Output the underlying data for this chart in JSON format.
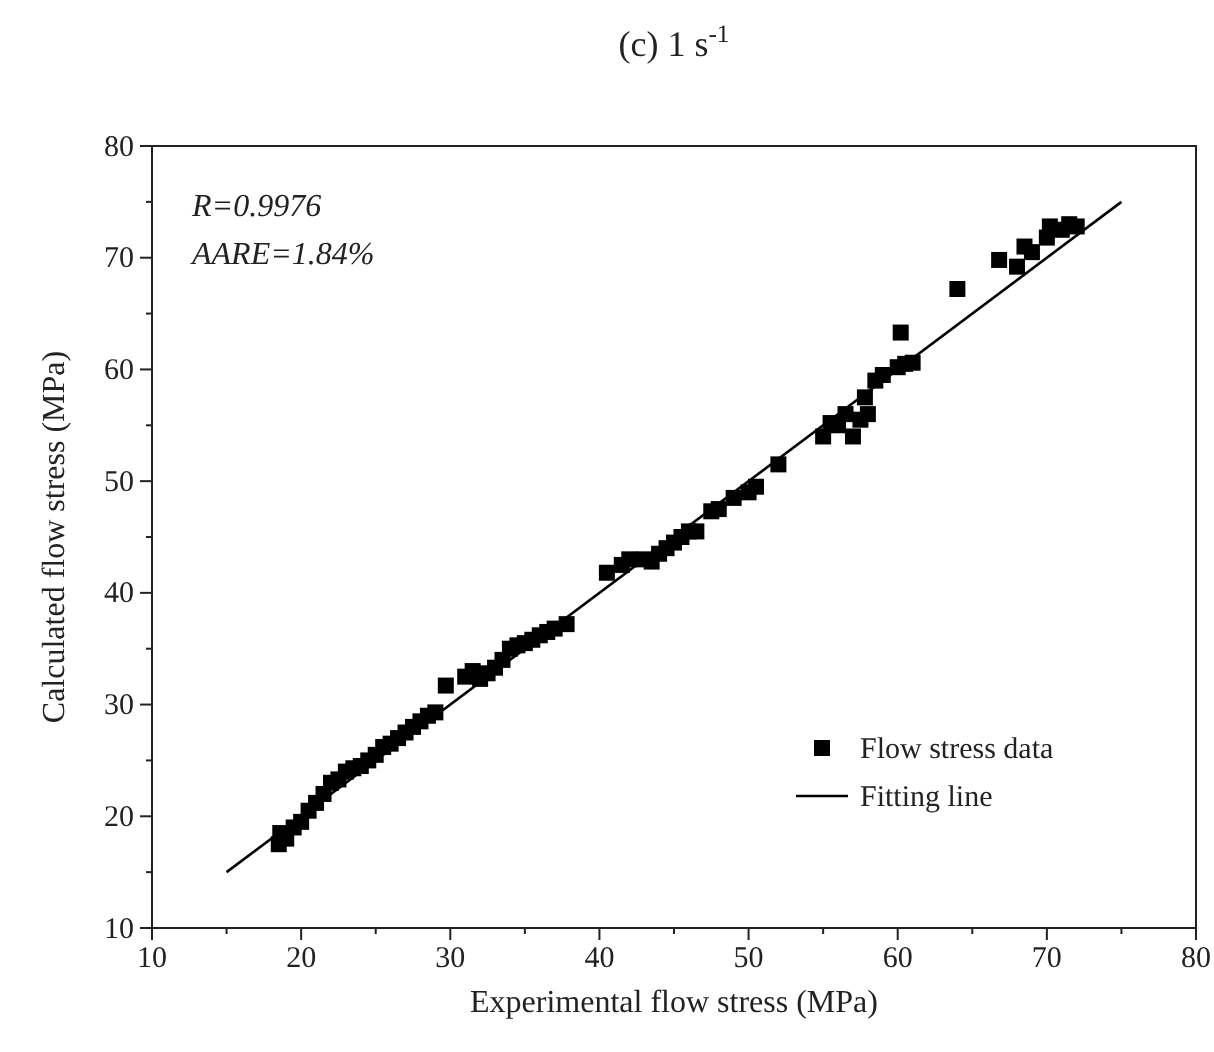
{
  "chart_data": {
    "type": "scatter",
    "title": "(c) 1 s$^{-1}$",
    "xlabel": "Experimental flow stress (MPa)",
    "ylabel": "Calculated flow stress (MPa)",
    "xlim": [
      10,
      80
    ],
    "ylim": [
      10,
      80
    ],
    "xticks": [
      10,
      20,
      30,
      40,
      50,
      60,
      70,
      80
    ],
    "yticks": [
      10,
      20,
      30,
      40,
      50,
      60,
      70,
      80
    ],
    "annotations": [
      "R=0.9976",
      "AARE=1.84%"
    ],
    "legend": "bottom right",
    "grid": false,
    "series": [
      {
        "name": "Flow stress data",
        "marker": "square",
        "color": "#000000",
        "x": [
          18.5,
          18.6,
          19,
          19.5,
          20,
          20.5,
          21,
          21.5,
          22,
          22.5,
          23,
          23.5,
          24,
          24.5,
          25,
          25.5,
          26,
          26.5,
          27,
          27.5,
          28,
          28.5,
          29,
          29.7,
          31,
          31.5,
          32,
          32.5,
          33,
          33.5,
          34,
          34.5,
          35,
          35.5,
          36,
          36.5,
          37,
          37.8,
          40.5,
          41.5,
          42,
          43,
          43.5,
          44,
          44.5,
          45,
          45.5,
          46,
          46.5,
          47.5,
          48,
          49,
          50,
          50.5,
          52,
          55,
          55.5,
          56,
          56.5,
          57,
          57.5,
          57.8,
          58,
          58.5,
          59,
          60,
          60.2,
          60.5,
          61,
          64,
          66.8,
          68,
          68.5,
          69,
          70,
          70.2,
          71,
          71.5,
          72
        ],
        "values": [
          17.5,
          18.5,
          18,
          19,
          19.5,
          20.5,
          21.2,
          22,
          23,
          23.3,
          24,
          24.3,
          24.5,
          25,
          25.5,
          26.2,
          26.5,
          27,
          27.5,
          28,
          28.5,
          29,
          29.3,
          31.7,
          32.5,
          33,
          32.3,
          32.8,
          33.3,
          34,
          35,
          35.3,
          35.5,
          35.8,
          36.2,
          36.5,
          36.8,
          37.2,
          41.8,
          42.5,
          43,
          43,
          42.8,
          43.5,
          44,
          44.5,
          45,
          45.5,
          45.5,
          47.3,
          47.5,
          48.5,
          49,
          49.5,
          51.5,
          54,
          55.2,
          55,
          56,
          54,
          55.5,
          57.5,
          56,
          59,
          59.5,
          60.2,
          63.3,
          60.5,
          60.6,
          67.2,
          69.8,
          69.2,
          71,
          70.5,
          71.8,
          72.8,
          72.5,
          73,
          72.8
        ]
      },
      {
        "name": "Fitting line",
        "type": "line",
        "line_style": "solid",
        "color": "#000000",
        "x": [
          15,
          75
        ],
        "values": [
          15,
          75
        ]
      }
    ]
  }
}
